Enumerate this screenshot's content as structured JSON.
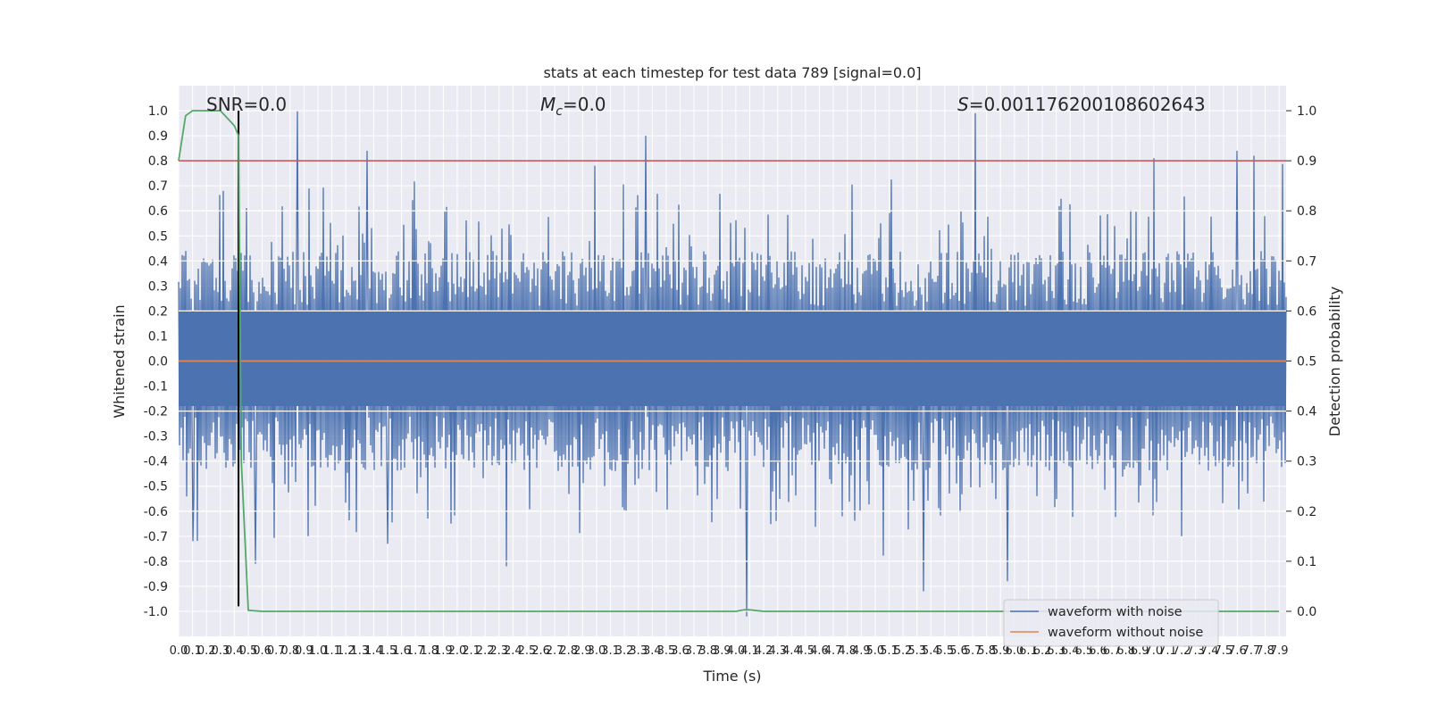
{
  "chart_data": {
    "type": "line",
    "title": "stats at each timestep for test data 789 [signal=0.0]",
    "xlabel": "Time (s)",
    "ylabel": "Whitened strain",
    "ylabel_right": "Detection probability",
    "xlim": [
      0.0,
      7.95
    ],
    "ylim": [
      -1.1,
      1.1
    ],
    "ylim_right": [
      -0.05,
      1.05
    ],
    "x_ticks": [
      "0.0",
      "0.1",
      "0.2",
      "0.3",
      "0.4",
      "0.5",
      "0.6",
      "0.7",
      "0.8",
      "0.9",
      "1.0",
      "1.1",
      "1.2",
      "1.3",
      "1.4",
      "1.5",
      "1.6",
      "1.7",
      "1.8",
      "1.9",
      "2.0",
      "2.1",
      "2.2",
      "2.3",
      "2.4",
      "2.5",
      "2.6",
      "2.7",
      "2.8",
      "2.9",
      "3.0",
      "3.1",
      "3.2",
      "3.3",
      "3.4",
      "3.5",
      "3.6",
      "3.7",
      "3.8",
      "3.9",
      "4.0",
      "4.1",
      "4.2",
      "4.3",
      "4.4",
      "4.5",
      "4.6",
      "4.7",
      "4.8",
      "4.9",
      "5.0",
      "5.1",
      "5.2",
      "5.3",
      "5.4",
      "5.5",
      "5.6",
      "5.7",
      "5.8",
      "5.9",
      "6.0",
      "6.1",
      "6.2",
      "6.3",
      "6.4",
      "6.5",
      "6.6",
      "6.7",
      "6.8",
      "6.9",
      "7.0",
      "7.1",
      "7.2",
      "7.3",
      "7.4",
      "7.5",
      "7.6",
      "7.7",
      "7.8",
      "7.9"
    ],
    "y_ticks": [
      "-1.0",
      "-0.9",
      "-0.8",
      "-0.7",
      "-0.6",
      "-0.5",
      "-0.4",
      "-0.3",
      "-0.2",
      "-0.1",
      "0.0",
      "0.1",
      "0.2",
      "0.3",
      "0.4",
      "0.5",
      "0.6",
      "0.7",
      "0.8",
      "0.9",
      "1.0"
    ],
    "y_ticks_right": [
      "0.0",
      "0.1",
      "0.2",
      "0.3",
      "0.4",
      "0.5",
      "0.6",
      "0.7",
      "0.8",
      "0.9",
      "1.0"
    ],
    "annotations": {
      "snr": "SNR=0.0",
      "mc": "=0.0",
      "mc_symbol": "M",
      "mc_sub": "c",
      "s": "=0.001176200108602643",
      "s_symbol": "S"
    },
    "series": [
      {
        "name": "waveform with noise",
        "color": "#4c72b0",
        "envelope": "noise, |amplitude| mostly within 0.25-0.45 with spikes up to ~1.0",
        "spikes": [
          [
            0.85,
            1.0
          ],
          [
            1.35,
            0.84
          ],
          [
            3.35,
            0.9
          ],
          [
            5.72,
            0.99
          ],
          [
            7.6,
            0.84
          ],
          [
            7.72,
            0.82
          ],
          [
            7.0,
            0.81
          ],
          [
            4.08,
            -1.02
          ],
          [
            5.35,
            -0.92
          ],
          [
            5.95,
            -0.88
          ],
          [
            0.55,
            -0.81
          ],
          [
            2.35,
            -0.82
          ],
          [
            1.5,
            -0.73
          ],
          [
            0.1,
            -0.72
          ]
        ]
      },
      {
        "name": "waveform without noise",
        "color": "#dd8452",
        "x": [
          0.0,
          7.95
        ],
        "y": [
          0.0,
          0.0
        ]
      },
      {
        "name": "",
        "color": "#55a868",
        "axis": "right",
        "x": [
          0.0,
          0.05,
          0.1,
          0.2,
          0.3,
          0.4,
          0.43,
          0.45,
          0.5,
          0.6,
          4.0,
          4.06,
          4.1,
          4.2,
          7.9
        ],
        "y": [
          0.9,
          0.99,
          1.0,
          1.0,
          1.0,
          0.97,
          0.95,
          0.3,
          0.002,
          0.0,
          0.0,
          0.003,
          0.003,
          0.0,
          0.0
        ]
      }
    ],
    "threshold": {
      "axis": "right",
      "value": 0.9,
      "color": "#c44e52"
    },
    "vline": {
      "x": 0.43,
      "ymin": -0.98,
      "ymax": 1.0,
      "color": "#000000"
    },
    "legend_placement": "lower-right",
    "grid": true
  }
}
